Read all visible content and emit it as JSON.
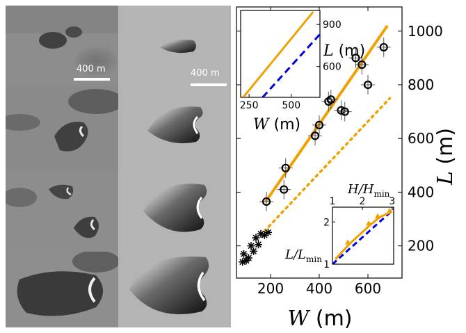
{
  "scale_bar_label": "400 m",
  "chart_data": [
    {
      "type": "scatter",
      "xlabel_symbol": "W",
      "xlabel_unit": "(m)",
      "ylabel_symbol": "L",
      "ylabel_unit": "(m)",
      "xlim": [
        60,
        740
      ],
      "ylim": [
        80,
        1090
      ],
      "x_ticks": [
        200,
        400,
        600
      ],
      "y_ticks": [
        200,
        400,
        600,
        800,
        1000
      ],
      "series": [
        {
          "marker": "circle",
          "points": [
            {
              "x": 183,
              "y": 365
            },
            {
              "x": 255,
              "y": 410
            },
            {
              "x": 262,
              "y": 490
            },
            {
              "x": 383,
              "y": 610
            },
            {
              "x": 400,
              "y": 650
            },
            {
              "x": 438,
              "y": 738
            },
            {
              "x": 448,
              "y": 745
            },
            {
              "x": 490,
              "y": 705
            },
            {
              "x": 505,
              "y": 700
            },
            {
              "x": 550,
              "y": 900
            },
            {
              "x": 575,
              "y": 875
            },
            {
              "x": 600,
              "y": 800
            },
            {
              "x": 665,
              "y": 940
            }
          ]
        },
        {
          "marker": "star",
          "points": [
            {
              "x": 85,
              "y": 140
            },
            {
              "x": 90,
              "y": 170
            },
            {
              "x": 100,
              "y": 145
            },
            {
              "x": 110,
              "y": 155
            },
            {
              "x": 120,
              "y": 200
            },
            {
              "x": 130,
              "y": 180
            },
            {
              "x": 140,
              "y": 230
            },
            {
              "x": 150,
              "y": 205
            },
            {
              "x": 160,
              "y": 245
            },
            {
              "x": 175,
              "y": 240
            },
            {
              "x": 190,
              "y": 250
            }
          ]
        }
      ],
      "fit_line": {
        "x": [
          180,
          680
        ],
        "y": [
          365,
          1020
        ],
        "color": "#f0a000"
      },
      "dotted_line": {
        "x": [
          175,
          690
        ],
        "y": [
          255,
          750
        ],
        "color": "#f0a000"
      }
    },
    {
      "type": "line",
      "xlabel_symbol": "W",
      "xlabel_unit": "(m)",
      "ylabel_symbol": "L",
      "ylabel_unit": "(m)",
      "xlim": [
        200,
        670
      ],
      "ylim": [
        380,
        1000
      ],
      "x_ticks": [
        250,
        500
      ],
      "y_ticks": [
        600,
        900
      ],
      "solid_line": {
        "x": [
          215,
          630
        ],
        "y": [
          380,
          990
        ],
        "color": "#f0a000"
      },
      "dashed_line": {
        "x": [
          330,
          670
        ],
        "y": [
          380,
          830
        ],
        "color": "#0000dd"
      }
    },
    {
      "type": "line",
      "xlabel_symbol": "H/H",
      "xlabel_sub": "min",
      "ylabel_symbol": "L/L",
      "ylabel_sub": "min",
      "xlim": [
        1,
        3.05
      ],
      "ylim": [
        1,
        2.35
      ],
      "x_ticks": [
        1,
        2,
        3
      ],
      "y_ticks": [
        1,
        2
      ],
      "dashed_line": {
        "x": [
          1,
          3.05
        ],
        "y": [
          1,
          2.3
        ],
        "color": "#0000dd"
      },
      "orange_path": {
        "x": [
          1.1,
          1.6,
          2.3,
          2.6,
          3.0
        ],
        "y": [
          1.12,
          1.5,
          1.95,
          2.12,
          2.25
        ],
        "color": "#f0a000"
      }
    }
  ]
}
